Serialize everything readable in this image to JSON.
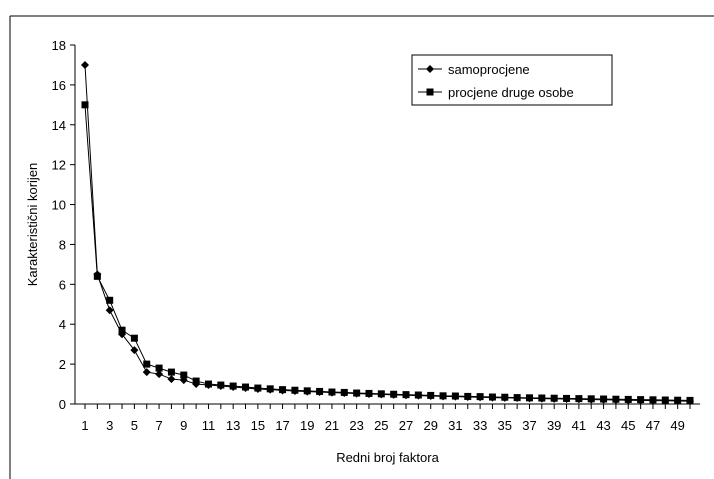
{
  "chart_data": {
    "type": "line",
    "xlabel": "Redni broj faktora",
    "ylabel": "Karakteristični korijen",
    "ylim": [
      0,
      18
    ],
    "yticks": [
      0,
      2,
      4,
      6,
      8,
      10,
      12,
      14,
      16,
      18
    ],
    "xlim": [
      1,
      50
    ],
    "xticks": [
      1,
      3,
      5,
      7,
      9,
      11,
      13,
      15,
      17,
      19,
      21,
      23,
      25,
      27,
      29,
      31,
      33,
      35,
      37,
      39,
      41,
      43,
      45,
      47,
      49
    ],
    "grid": false,
    "legend_position": "top-right",
    "x": [
      1,
      2,
      3,
      4,
      5,
      6,
      7,
      8,
      9,
      10,
      11,
      12,
      13,
      14,
      15,
      16,
      17,
      18,
      19,
      20,
      21,
      22,
      23,
      24,
      25,
      26,
      27,
      28,
      29,
      30,
      31,
      32,
      33,
      34,
      35,
      36,
      37,
      38,
      39,
      40,
      41,
      42,
      43,
      44,
      45,
      46,
      47,
      48,
      49,
      50
    ],
    "series": [
      {
        "name": "samoprocjene",
        "marker": "diamond",
        "color": "#000000",
        "values": [
          17.0,
          6.5,
          4.7,
          3.5,
          2.7,
          1.6,
          1.5,
          1.25,
          1.2,
          1.0,
          0.95,
          0.9,
          0.85,
          0.8,
          0.75,
          0.72,
          0.68,
          0.65,
          0.62,
          0.6,
          0.57,
          0.55,
          0.52,
          0.5,
          0.48,
          0.46,
          0.44,
          0.42,
          0.4,
          0.38,
          0.37,
          0.35,
          0.34,
          0.32,
          0.31,
          0.3,
          0.28,
          0.27,
          0.26,
          0.25,
          0.24,
          0.22,
          0.21,
          0.2,
          0.19,
          0.18,
          0.17,
          0.16,
          0.15,
          0.14
        ]
      },
      {
        "name": "procjene druge osobe",
        "marker": "square",
        "color": "#000000",
        "values": [
          15.0,
          6.4,
          5.2,
          3.7,
          3.3,
          2.0,
          1.8,
          1.6,
          1.45,
          1.15,
          1.0,
          0.95,
          0.9,
          0.85,
          0.8,
          0.76,
          0.72,
          0.69,
          0.66,
          0.63,
          0.6,
          0.58,
          0.55,
          0.53,
          0.51,
          0.49,
          0.47,
          0.45,
          0.43,
          0.41,
          0.4,
          0.38,
          0.37,
          0.35,
          0.34,
          0.32,
          0.31,
          0.3,
          0.29,
          0.28,
          0.27,
          0.26,
          0.25,
          0.24,
          0.23,
          0.22,
          0.21,
          0.2,
          0.19,
          0.18
        ]
      }
    ]
  }
}
